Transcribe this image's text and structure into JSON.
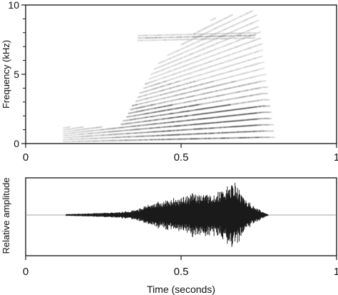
{
  "colors": {
    "axis": "#111111",
    "ink": "#1a1a1a",
    "background": "#ffffff"
  },
  "chart_data": [
    {
      "type": "heatmap",
      "subtype": "spectrogram",
      "title": "",
      "xlabel": "",
      "ylabel": "Frequency (kHz)",
      "xlim": [
        0,
        1
      ],
      "ylim": [
        0,
        10
      ],
      "x_ticks": [
        0,
        0.5,
        1
      ],
      "x_tick_labels": [
        "0",
        "0.5",
        "1"
      ],
      "y_ticks": [
        0,
        5,
        10
      ],
      "y_tick_labels": [
        "0",
        "5",
        "10"
      ],
      "y_minor_ticks": [
        1,
        2,
        3,
        4,
        6,
        7,
        8,
        9
      ],
      "grid": false,
      "signal_span_s": [
        0.12,
        0.8
      ],
      "harmonic_f0_khz": {
        "onset_s": 0.12,
        "onset_value": 0.14,
        "offset_s": 0.76,
        "offset_value": 0.45
      },
      "upper_band_khz": {
        "start_s": 0.36,
        "end_s": 0.74,
        "center": 7.6
      }
    },
    {
      "type": "line",
      "subtype": "waveform",
      "title": "",
      "xlabel": "Time (seconds)",
      "ylabel": "Relative amplitude",
      "xlim": [
        0,
        1
      ],
      "x_ticks": [
        0,
        0.5,
        1
      ],
      "x_tick_labels": [
        "0",
        "0.5",
        "1"
      ],
      "grid": false,
      "series": [
        {
          "x": [
            0.13,
            0.2,
            0.3,
            0.35,
            0.4,
            0.45,
            0.5,
            0.55,
            0.6,
            0.65,
            0.67,
            0.7,
            0.73,
            0.76,
            0.78
          ],
          "values": [
            0.03,
            0.05,
            0.09,
            0.15,
            0.35,
            0.45,
            0.55,
            0.7,
            0.65,
            0.85,
            1.0,
            0.6,
            0.3,
            0.12,
            0.02
          ]
        }
      ]
    }
  ]
}
